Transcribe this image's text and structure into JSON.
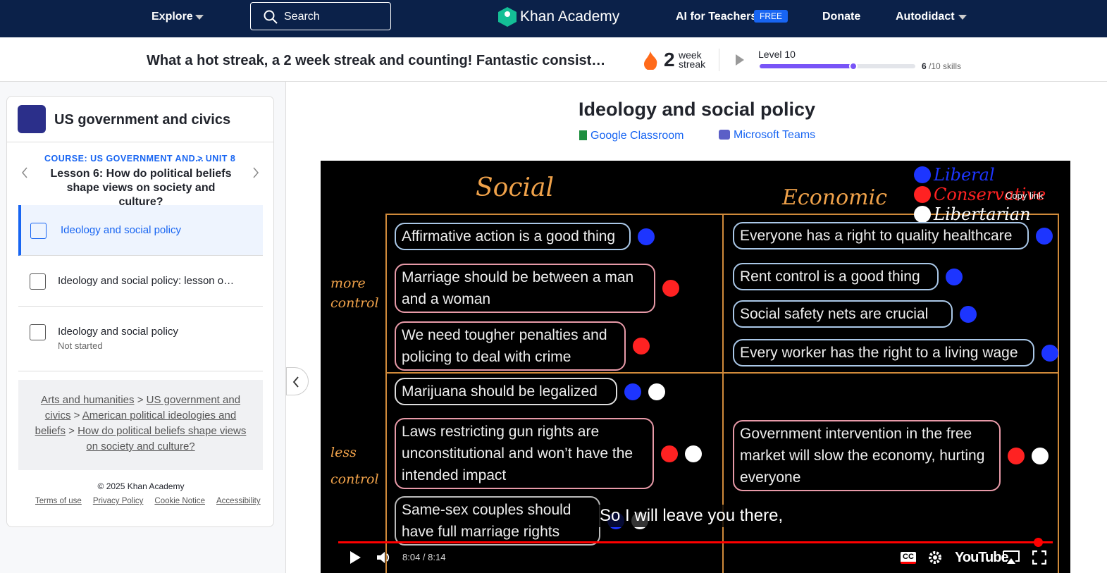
{
  "nav": {
    "explore": "Explore",
    "search": "Search",
    "logo": "Khan Academy",
    "ai_for_teachers": "AI for Teachers",
    "free_badge": "FREE",
    "donate": "Donate",
    "user": "Autodidact"
  },
  "streak_bar": {
    "message": "What a hot streak, a 2 week streak and counting! Fantastic consist…",
    "streak_count": "2",
    "streak_unit_1": "week",
    "streak_unit_2": "streak",
    "level": "Level 10",
    "skills_done": "6",
    "skills_total": "/10 skills"
  },
  "sidebar": {
    "course_title": "US government and civics",
    "course_crumb": "COURSE: US GOVERNMENT AND...",
    "unit_crumb": "> UNIT 8",
    "lesson_title": "Lesson 6: How do political beliefs shape views on society and culture?",
    "items": [
      {
        "title": "Ideology and social policy"
      },
      {
        "title": "Ideology and social policy: lesson o…"
      },
      {
        "title": "Ideology and social policy",
        "status": "Not started"
      }
    ],
    "breadcrumbs": [
      "Arts and humanities",
      "US government and civics",
      "American political ideologies and beliefs",
      "How do political beliefs shape views on society and culture?"
    ],
    "separator": ">",
    "copyright": "© 2025 Khan Academy",
    "footer_links": [
      "Terms of use",
      "Privacy Policy",
      "Cookie Notice",
      "Accessibility"
    ]
  },
  "main": {
    "title": "Ideology and social policy",
    "share": [
      "Google Classroom",
      "Microsoft Teams"
    ]
  },
  "video": {
    "social": "Social",
    "economic": "Economic",
    "more_control": "more control",
    "less_control": "less control",
    "legend": [
      {
        "label": "Liberal",
        "color": "#1d35ff"
      },
      {
        "label": "Conservative",
        "color": "#ff2222"
      },
      {
        "label": "Libertarian",
        "color": "#ffffff"
      }
    ],
    "statements": [
      {
        "text": "Affirmative action is a good thing",
        "dots": [
          "#1d35ff"
        ]
      },
      {
        "text": "Marriage should be between a man and a woman",
        "dots": [
          "#ff2222"
        ]
      },
      {
        "text": "We need tougher penalties and policing to deal with crime",
        "dots": [
          "#ff2222"
        ]
      },
      {
        "text": "Marijuana should be legalized",
        "dots": [
          "#1d35ff",
          "#ffffff"
        ]
      },
      {
        "text": "Laws restricting gun rights are unconstitutional and won’t have the intended impact",
        "dots": [
          "#ff2222",
          "#ffffff"
        ]
      },
      {
        "text": "Same-sex couples should have full marriage rights",
        "dots": [
          "#1d35ff",
          "#ffffff"
        ]
      },
      {
        "text": "Everyone has a right to quality healthcare",
        "dots": [
          "#1d35ff"
        ]
      },
      {
        "text": "Rent control is a good thing",
        "dots": [
          "#1d35ff"
        ]
      },
      {
        "text": "Social safety nets are crucial",
        "dots": [
          "#1d35ff"
        ]
      },
      {
        "text": "Every worker has the right to a living wage",
        "dots": [
          "#1d35ff"
        ]
      },
      {
        "text": "Government intervention in the free market will slow the economy, hurting everyone",
        "dots": [
          "#ff2222",
          "#ffffff"
        ]
      }
    ],
    "caption": "So I will leave you there,",
    "time": "8:04 / 8:14",
    "copy_link": "Copy link",
    "cc": "CC",
    "brand": "YouTube"
  }
}
